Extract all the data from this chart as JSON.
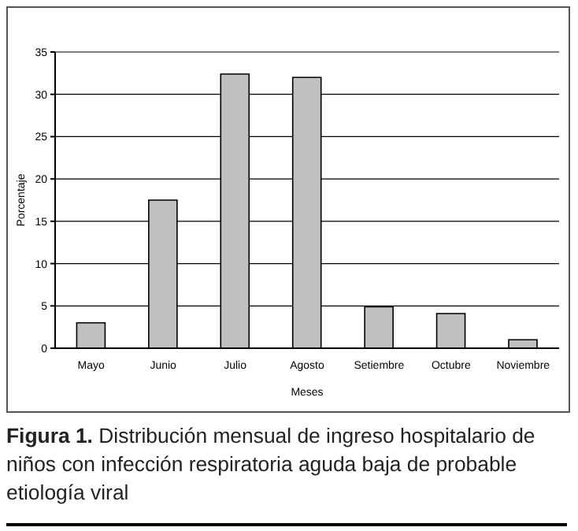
{
  "chart_data": {
    "type": "bar",
    "xlabel": "Meses",
    "ylabel": "Porcentaje",
    "categories": [
      "Mayo",
      "Junio",
      "Julio",
      "Agosto",
      "Setiembre",
      "Octubre",
      "Noviembre"
    ],
    "values": [
      3,
      17.5,
      32.4,
      32,
      4.9,
      4.1,
      1
    ],
    "color": "#c0c0c0",
    "ylim": [
      0,
      35
    ],
    "yticks": [
      0,
      5,
      10,
      15,
      20,
      25,
      30,
      35
    ],
    "grid": "y",
    "legend": false,
    "annotations": [
      "Figura 1.",
      "Distribución mensual de ingreso hospitalario de niños con infección respiratoria aguda baja de probable etiología viral"
    ]
  }
}
